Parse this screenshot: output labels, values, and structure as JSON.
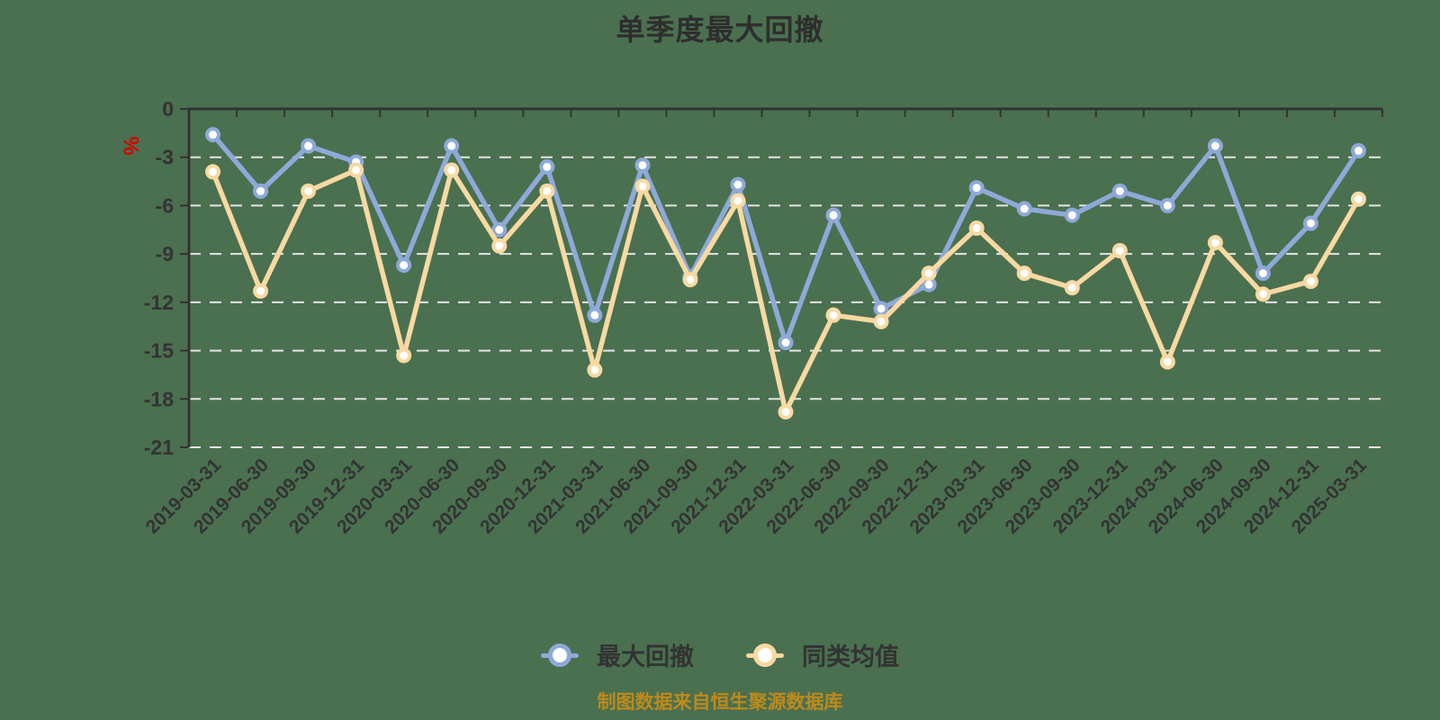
{
  "header": {
    "title": "单季度最大回撤"
  },
  "y_axis": {
    "unit_label": "%",
    "unit_color": "#D60000",
    "tick_labels": [
      "0",
      "-3",
      "-6",
      "-9",
      "-12",
      "-15",
      "-18",
      "-21"
    ]
  },
  "footer": {
    "source_note": "制图数据来自恒生聚源数据库",
    "color": "#BE8A1A"
  },
  "colors": {
    "background": "#4A7050",
    "grid": "#E4E4E4",
    "axis": "#333333",
    "text": "#333333",
    "series_max_drawdown": "#8EA9D8",
    "series_peer_average": "#F8D9A2"
  },
  "chart_data": {
    "type": "line",
    "title": "单季度最大回撤",
    "ylabel": "%",
    "xlabel": "",
    "ylim": [
      -21,
      0
    ],
    "y_ticks": [
      0,
      -3,
      -6,
      -9,
      -12,
      -15,
      -18,
      -21
    ],
    "grid": "horizontal-dashed",
    "legend_position": "bottom",
    "x_label_rotation": 45,
    "categories": [
      "2019-03-31",
      "2019-06-30",
      "2019-09-30",
      "2019-12-31",
      "2020-03-31",
      "2020-06-30",
      "2020-09-30",
      "2020-12-31",
      "2021-03-31",
      "2021-06-30",
      "2021-09-30",
      "2021-12-31",
      "2022-03-31",
      "2022-06-30",
      "2022-09-30",
      "2022-12-31",
      "2023-03-31",
      "2023-06-30",
      "2023-09-30",
      "2023-12-31",
      "2024-03-31",
      "2024-06-30",
      "2024-09-30",
      "2024-12-31",
      "2025-03-31"
    ],
    "series": [
      {
        "name": "最大回撤",
        "color": "#8EA9D8",
        "marker": "circle",
        "values": [
          -1.6,
          -5.1,
          -2.3,
          -3.3,
          -9.7,
          -2.3,
          -7.5,
          -3.6,
          -12.8,
          -3.5,
          -10.4,
          -4.7,
          -14.5,
          -6.6,
          -12.4,
          -10.9,
          -4.9,
          -6.2,
          -6.6,
          -5.1,
          -6.0,
          -2.3,
          -10.2,
          -7.1,
          -2.6
        ]
      },
      {
        "name": "同类均值",
        "color": "#F8D9A2",
        "marker": "circle",
        "values": [
          -3.9,
          -11.3,
          -5.1,
          -3.8,
          -15.3,
          -3.8,
          -8.5,
          -5.1,
          -16.2,
          -4.8,
          -10.6,
          -5.7,
          -18.8,
          -12.8,
          -13.2,
          -10.2,
          -7.4,
          -10.2,
          -11.1,
          -8.8,
          -15.7,
          -8.3,
          -11.5,
          -10.7,
          -5.6
        ]
      }
    ]
  }
}
